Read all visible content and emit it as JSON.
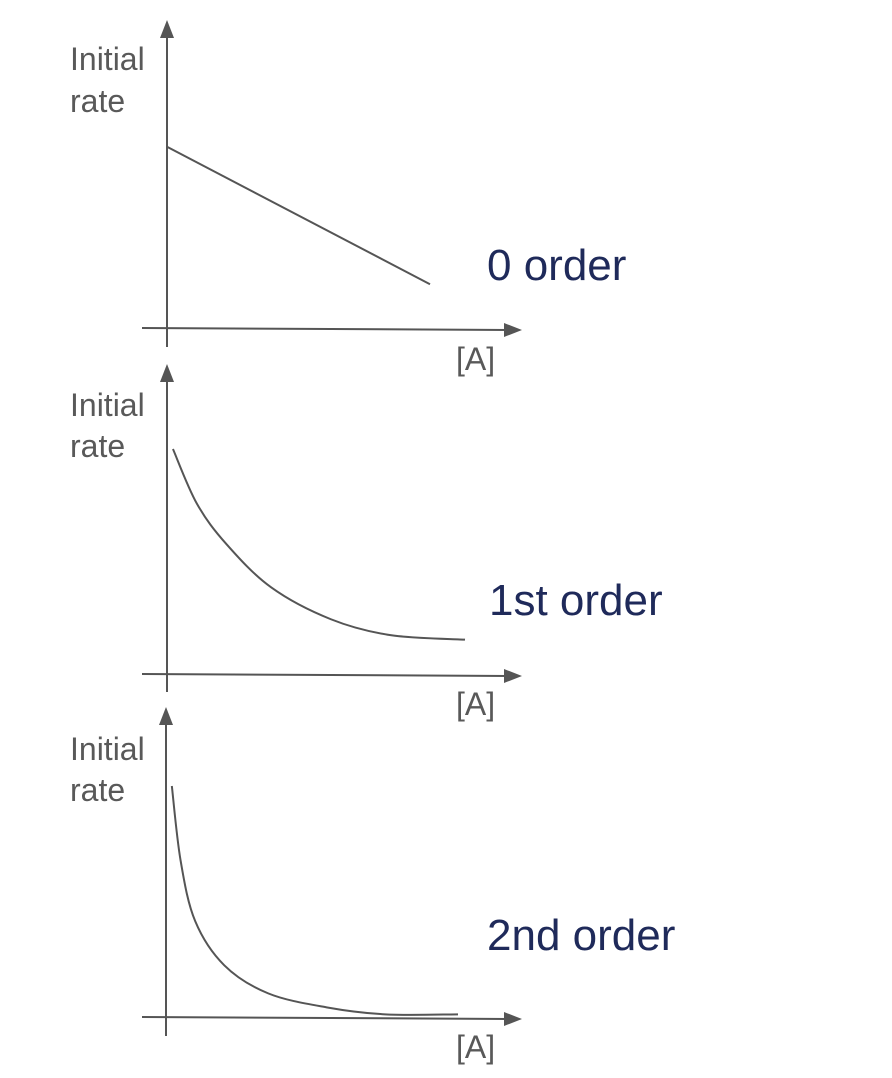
{
  "chart_data": [
    {
      "type": "line",
      "title": "0 order",
      "ylabel": [
        "Initial",
        "rate"
      ],
      "xlabel": "[A]",
      "series": [
        {
          "values": [
            [
              0,
              0.8
            ],
            [
              1,
              0.2
            ]
          ]
        }
      ],
      "xlim": [
        0,
        1
      ],
      "ylim": [
        0,
        1
      ],
      "grid": false,
      "shape": "linear decreasing"
    },
    {
      "type": "line",
      "title": "1st order",
      "ylabel": [
        "Initial",
        "rate"
      ],
      "xlabel": "[A]",
      "series": [
        {
          "values": [
            [
              0.02,
              1.0
            ],
            [
              0.1,
              0.76
            ],
            [
              0.2,
              0.58
            ],
            [
              0.35,
              0.39
            ],
            [
              0.55,
              0.25
            ],
            [
              0.75,
              0.18
            ],
            [
              1.0,
              0.16
            ]
          ]
        }
      ],
      "xlim": [
        0,
        1
      ],
      "ylim": [
        0,
        1
      ],
      "grid": false,
      "shape": "decaying curve"
    },
    {
      "type": "line",
      "title": "2nd order",
      "ylabel": [
        "Initial",
        "rate"
      ],
      "xlabel": "[A]",
      "series": [
        {
          "values": [
            [
              0.02,
              1.0
            ],
            [
              0.05,
              0.68
            ],
            [
              0.1,
              0.42
            ],
            [
              0.2,
              0.23
            ],
            [
              0.35,
              0.11
            ],
            [
              0.55,
              0.05
            ],
            [
              0.75,
              0.02
            ],
            [
              1.0,
              0.02
            ]
          ]
        }
      ],
      "xlim": [
        0,
        1
      ],
      "ylim": [
        0,
        1
      ],
      "grid": false,
      "shape": "steep decaying curve"
    }
  ]
}
